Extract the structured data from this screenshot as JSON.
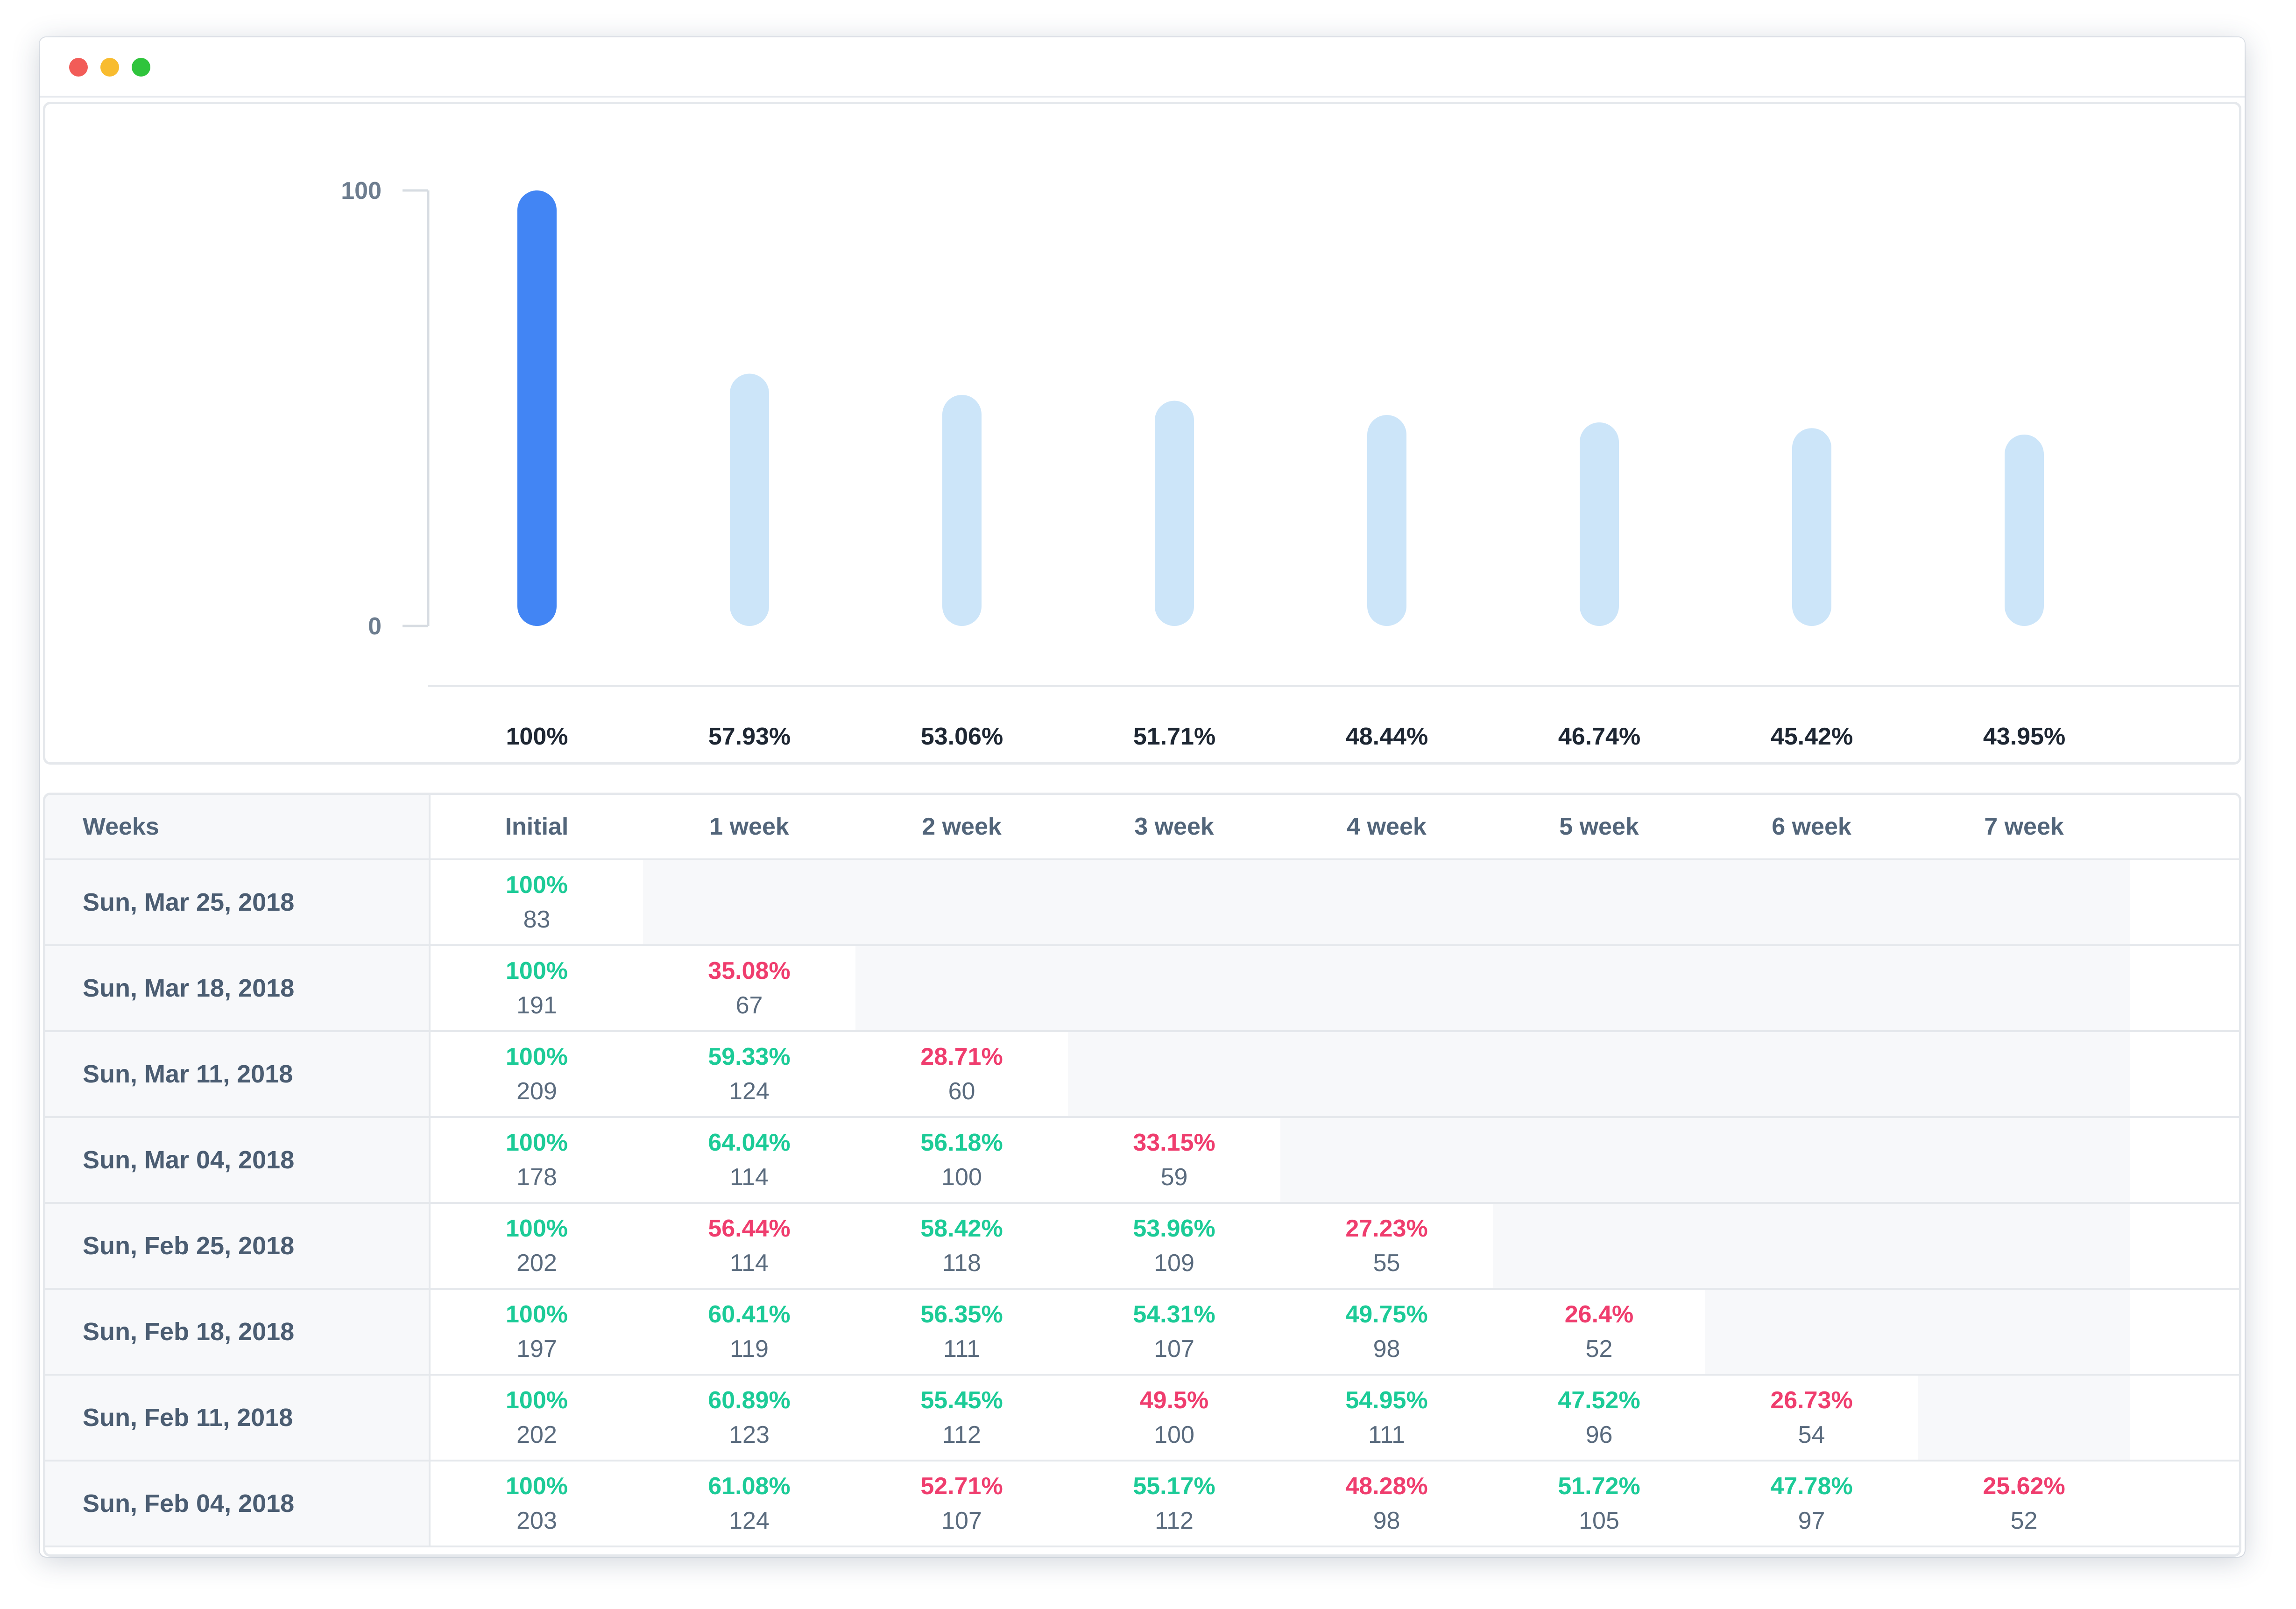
{
  "window": {
    "controls": {
      "close_color": "#f25c58",
      "minimize_color": "#f8bc2f",
      "maximize_color": "#2fc43c"
    }
  },
  "colors": {
    "highlight_bar": "#4285f4",
    "bar": "#cce5f9",
    "positive": "#1ccb97",
    "negative": "#ef3d6e"
  },
  "chart_data": {
    "type": "bar",
    "categories": [
      "Initial",
      "1 week",
      "2 week",
      "3 week",
      "4 week",
      "5 week",
      "6 week",
      "7 week"
    ],
    "values": [
      100,
      57.93,
      53.06,
      51.71,
      48.44,
      46.74,
      45.42,
      43.95
    ],
    "value_labels": [
      "100%",
      "57.93%",
      "53.06%",
      "51.71%",
      "48.44%",
      "46.74%",
      "45.42%",
      "43.95%"
    ],
    "ylim": [
      0,
      100
    ],
    "yticks": [
      "0",
      "100"
    ],
    "highlighted_index": 0,
    "grid": false,
    "legend": "none"
  },
  "table": {
    "header": [
      "Weeks",
      "Initial",
      "1 week",
      "2 week",
      "3 week",
      "4 week",
      "5 week",
      "6 week",
      "7 week"
    ],
    "rows": [
      {
        "label": "Sun, Mar 25, 2018",
        "cells": [
          {
            "pct": "100%",
            "count": "83",
            "trend": "positive"
          }
        ]
      },
      {
        "label": "Sun, Mar 18, 2018",
        "cells": [
          {
            "pct": "100%",
            "count": "191",
            "trend": "positive"
          },
          {
            "pct": "35.08%",
            "count": "67",
            "trend": "negative"
          }
        ]
      },
      {
        "label": "Sun, Mar 11, 2018",
        "cells": [
          {
            "pct": "100%",
            "count": "209",
            "trend": "positive"
          },
          {
            "pct": "59.33%",
            "count": "124",
            "trend": "positive"
          },
          {
            "pct": "28.71%",
            "count": "60",
            "trend": "negative"
          }
        ]
      },
      {
        "label": "Sun, Mar 04, 2018",
        "cells": [
          {
            "pct": "100%",
            "count": "178",
            "trend": "positive"
          },
          {
            "pct": "64.04%",
            "count": "114",
            "trend": "positive"
          },
          {
            "pct": "56.18%",
            "count": "100",
            "trend": "positive"
          },
          {
            "pct": "33.15%",
            "count": "59",
            "trend": "negative"
          }
        ]
      },
      {
        "label": "Sun, Feb 25, 2018",
        "cells": [
          {
            "pct": "100%",
            "count": "202",
            "trend": "positive"
          },
          {
            "pct": "56.44%",
            "count": "114",
            "trend": "negative"
          },
          {
            "pct": "58.42%",
            "count": "118",
            "trend": "positive"
          },
          {
            "pct": "53.96%",
            "count": "109",
            "trend": "positive"
          },
          {
            "pct": "27.23%",
            "count": "55",
            "trend": "negative"
          }
        ]
      },
      {
        "label": "Sun, Feb 18, 2018",
        "cells": [
          {
            "pct": "100%",
            "count": "197",
            "trend": "positive"
          },
          {
            "pct": "60.41%",
            "count": "119",
            "trend": "positive"
          },
          {
            "pct": "56.35%",
            "count": "111",
            "trend": "positive"
          },
          {
            "pct": "54.31%",
            "count": "107",
            "trend": "positive"
          },
          {
            "pct": "49.75%",
            "count": "98",
            "trend": "positive"
          },
          {
            "pct": "26.4%",
            "count": "52",
            "trend": "negative"
          }
        ]
      },
      {
        "label": "Sun, Feb 11, 2018",
        "cells": [
          {
            "pct": "100%",
            "count": "202",
            "trend": "positive"
          },
          {
            "pct": "60.89%",
            "count": "123",
            "trend": "positive"
          },
          {
            "pct": "55.45%",
            "count": "112",
            "trend": "positive"
          },
          {
            "pct": "49.5%",
            "count": "100",
            "trend": "negative"
          },
          {
            "pct": "54.95%",
            "count": "111",
            "trend": "positive"
          },
          {
            "pct": "47.52%",
            "count": "96",
            "trend": "positive"
          },
          {
            "pct": "26.73%",
            "count": "54",
            "trend": "negative"
          }
        ]
      },
      {
        "label": "Sun, Feb 04, 2018",
        "cells": [
          {
            "pct": "100%",
            "count": "203",
            "trend": "positive"
          },
          {
            "pct": "61.08%",
            "count": "124",
            "trend": "positive"
          },
          {
            "pct": "52.71%",
            "count": "107",
            "trend": "negative"
          },
          {
            "pct": "55.17%",
            "count": "112",
            "trend": "positive"
          },
          {
            "pct": "48.28%",
            "count": "98",
            "trend": "negative"
          },
          {
            "pct": "51.72%",
            "count": "105",
            "trend": "positive"
          },
          {
            "pct": "47.78%",
            "count": "97",
            "trend": "positive"
          },
          {
            "pct": "25.62%",
            "count": "52",
            "trend": "negative"
          }
        ]
      }
    ]
  }
}
